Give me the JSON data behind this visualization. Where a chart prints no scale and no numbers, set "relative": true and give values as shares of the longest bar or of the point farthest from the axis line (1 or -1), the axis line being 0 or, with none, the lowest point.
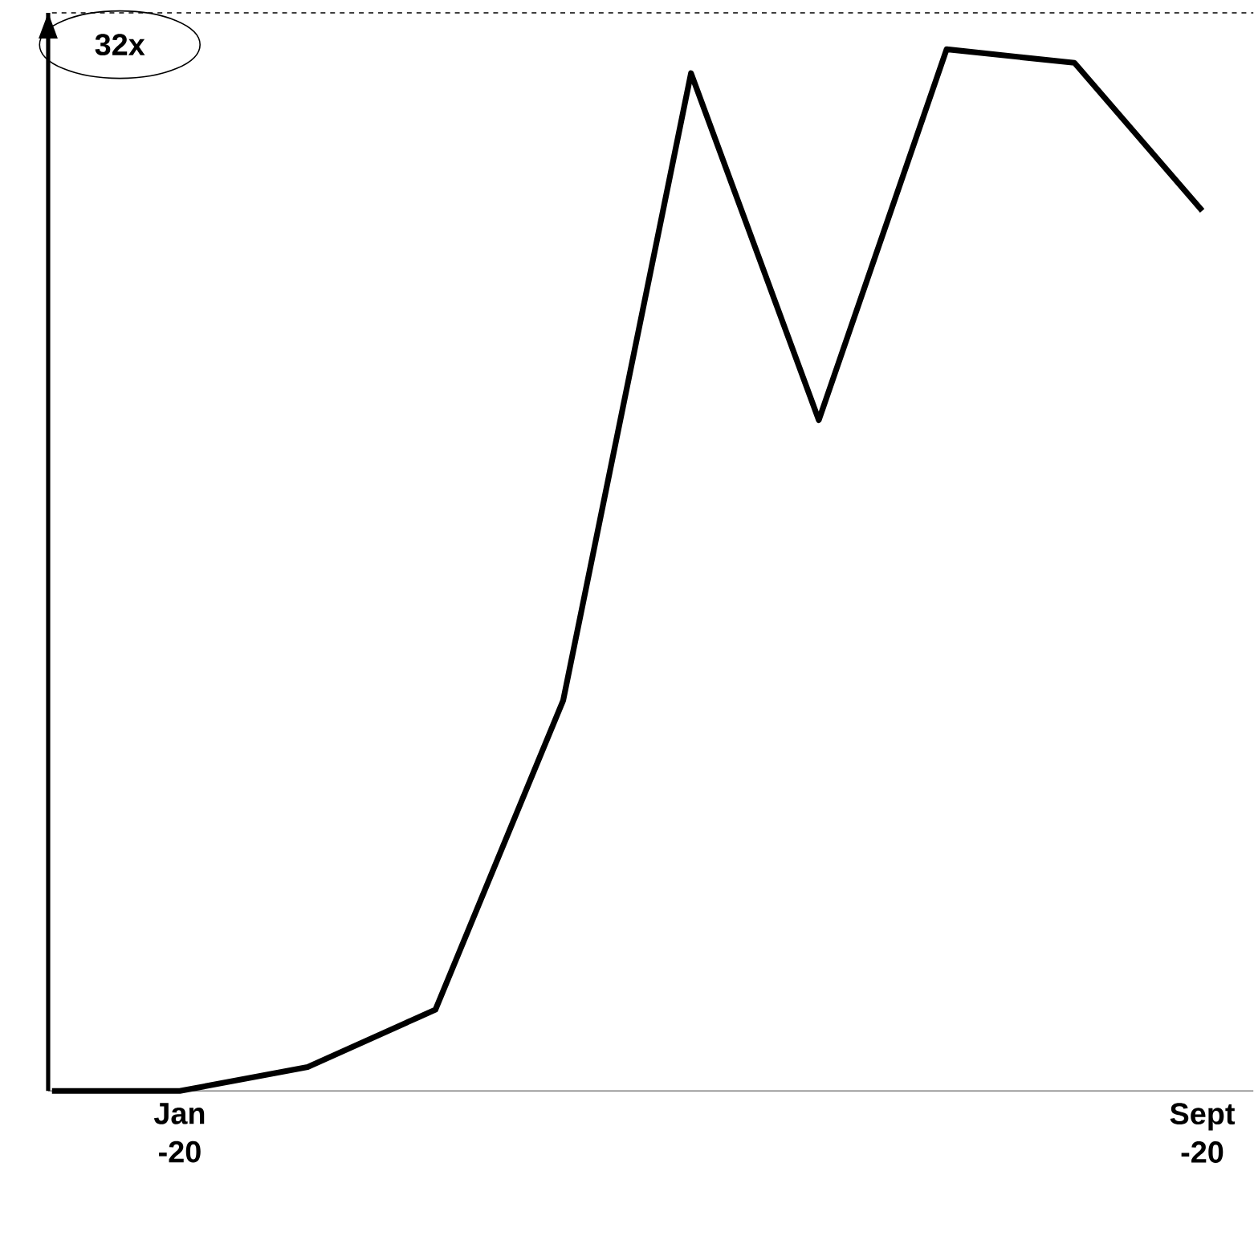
{
  "chart_data": {
    "type": "line",
    "relative": true,
    "categories": [
      null,
      "Jan -20",
      null,
      null,
      null,
      null,
      null,
      null,
      null,
      "Sept -20"
    ],
    "values": [
      0,
      0,
      0.023,
      0.078,
      0.375,
      0.977,
      0.644,
      1,
      0.987,
      0.845
    ],
    "color": "#000000",
    "ref_lines": [
      {
        "axis": "y",
        "value": 1.035,
        "label": "32x",
        "line_style": "dashed"
      }
    ],
    "tick_labels": "x",
    "line_style": "solid"
  }
}
